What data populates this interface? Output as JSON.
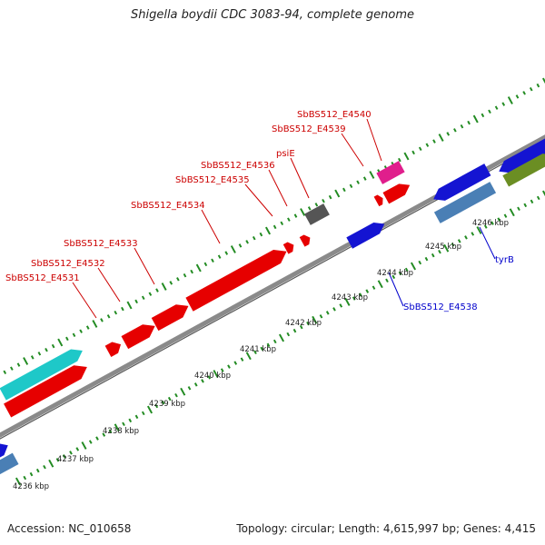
{
  "title": "Shigella boydii CDC 3083-94, complete genome",
  "accession": "Accession: NC_010658",
  "topology": "Topology: circular; Length: 4,615,997 bp; Genes: 4,415",
  "colors": {
    "backbone": "#8a8a8a",
    "tick": "#228b22",
    "red_gene": "#e60000",
    "red_label": "#cc0000",
    "blue_gene": "#1414d2",
    "blue_label": "#0000cc",
    "steel_gene": "#4a7fb5",
    "cyan_gene": "#1ec8c8",
    "pink_gene": "#e01e8c",
    "gray_gene": "#555555",
    "olive_gene": "#6b8e23"
  },
  "kbp_labels": [
    "4236 kbp",
    "4237 kbp",
    "4238 kbp",
    "4239 kbp",
    "4240 kbp",
    "4241 kbp",
    "4242 kbp",
    "4243 kbp",
    "4244 kbp",
    "4245 kbp",
    "4246 kbp"
  ],
  "gene_labels": [
    {
      "text": "SbBS512_E4531",
      "color": "red"
    },
    {
      "text": "SbBS512_E4532",
      "color": "red"
    },
    {
      "text": "SbBS512_E4533",
      "color": "red"
    },
    {
      "text": "SbBS512_E4534",
      "color": "red"
    },
    {
      "text": "SbBS512_E4535",
      "color": "red"
    },
    {
      "text": "SbBS512_E4536",
      "color": "red"
    },
    {
      "text": "psiE",
      "color": "red"
    },
    {
      "text": "SbBS512_E4539",
      "color": "red"
    },
    {
      "text": "SbBS512_E4540",
      "color": "red"
    },
    {
      "text": "SbBS512_E4538",
      "color": "blue"
    },
    {
      "text": "tyrB",
      "color": "blue"
    }
  ]
}
